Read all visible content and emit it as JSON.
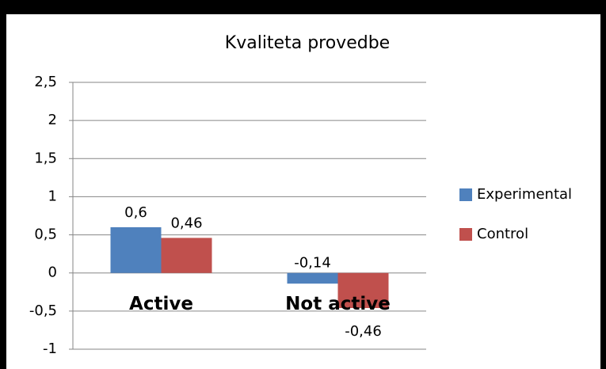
{
  "chart_data": {
    "type": "bar",
    "title": "Kvaliteta provedbe",
    "categories": [
      "Active",
      "Not active"
    ],
    "series": [
      {
        "name": "Experimental",
        "color": "#4f81bd",
        "values": [
          0.6,
          -0.14
        ],
        "value_labels": [
          "0,6",
          "-0,14"
        ]
      },
      {
        "name": "Control",
        "color": "#c0504d",
        "values": [
          0.46,
          -0.46
        ],
        "value_labels": [
          "0,46",
          "-0,46"
        ]
      }
    ],
    "ylim": [
      -1,
      2.5
    ],
    "yticks": [
      -1,
      {
        "value": -0.5,
        "label": "-0,5"
      },
      0,
      {
        "value": 0.5,
        "label": "0,5"
      },
      1,
      {
        "value": 1.5,
        "label": "1,5"
      },
      2,
      {
        "value": 2.5,
        "label": "2,5"
      }
    ],
    "grid": true,
    "legend": "right"
  }
}
